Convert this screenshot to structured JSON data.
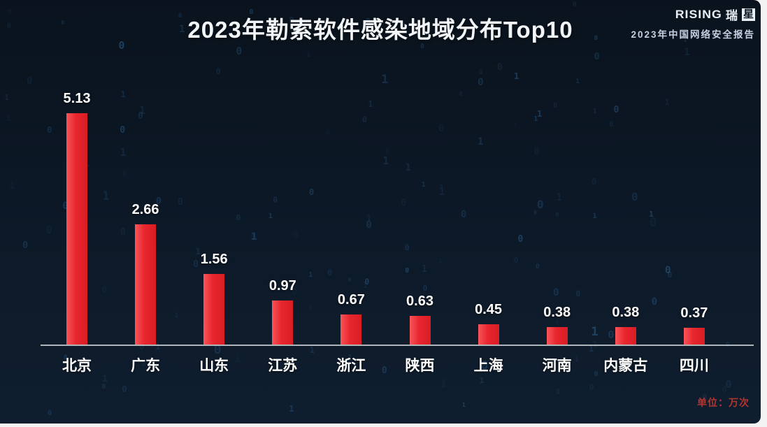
{
  "header": {
    "title": "2023年勒索软件感染地域分布Top10",
    "brand": {
      "wordmark_latin": "RISING",
      "wordmark_cn_first": "瑞",
      "wordmark_cn_second": "星",
      "report_subtitle": "2023年中国网络安全报告"
    }
  },
  "chart_data": {
    "type": "bar",
    "title": "2023年勒索软件感染地域分布Top10",
    "categories": [
      "北京",
      "广东",
      "山东",
      "江苏",
      "浙江",
      "陕西",
      "上海",
      "河南",
      "内蒙古",
      "四川"
    ],
    "values": [
      5.13,
      2.66,
      1.56,
      0.97,
      0.67,
      0.63,
      0.45,
      0.38,
      0.38,
      0.37
    ],
    "value_labels": [
      "5.13",
      "2.66",
      "1.56",
      "0.97",
      "0.67",
      "0.63",
      "0.45",
      "0.38",
      "0.38",
      "0.37"
    ],
    "unit_label": "单位：万次",
    "xlabel": "",
    "ylabel": "",
    "ylim": [
      0,
      5.5
    ],
    "grid": false,
    "legend_position": "none",
    "y_axis_visible": false,
    "bar_color": "#e8262e",
    "value_label_color": "#ffffff",
    "category_label_color": "#ffffff",
    "axis_line_color": "#c2c6ca"
  },
  "colors": {
    "panel_bg_top": "#0a131d",
    "panel_bg_bottom": "#0f1e2f",
    "page_bg": "#f3f3f3",
    "title_text": "#f3f6f9",
    "brand_subtitle": "#c4d0e2",
    "unit_text": "#b23530",
    "rain_glyphs": [
      "#2e6da8",
      "#245684",
      "#3e85c0"
    ]
  },
  "decor": {
    "rain_chars": [
      "0",
      "1"
    ]
  }
}
